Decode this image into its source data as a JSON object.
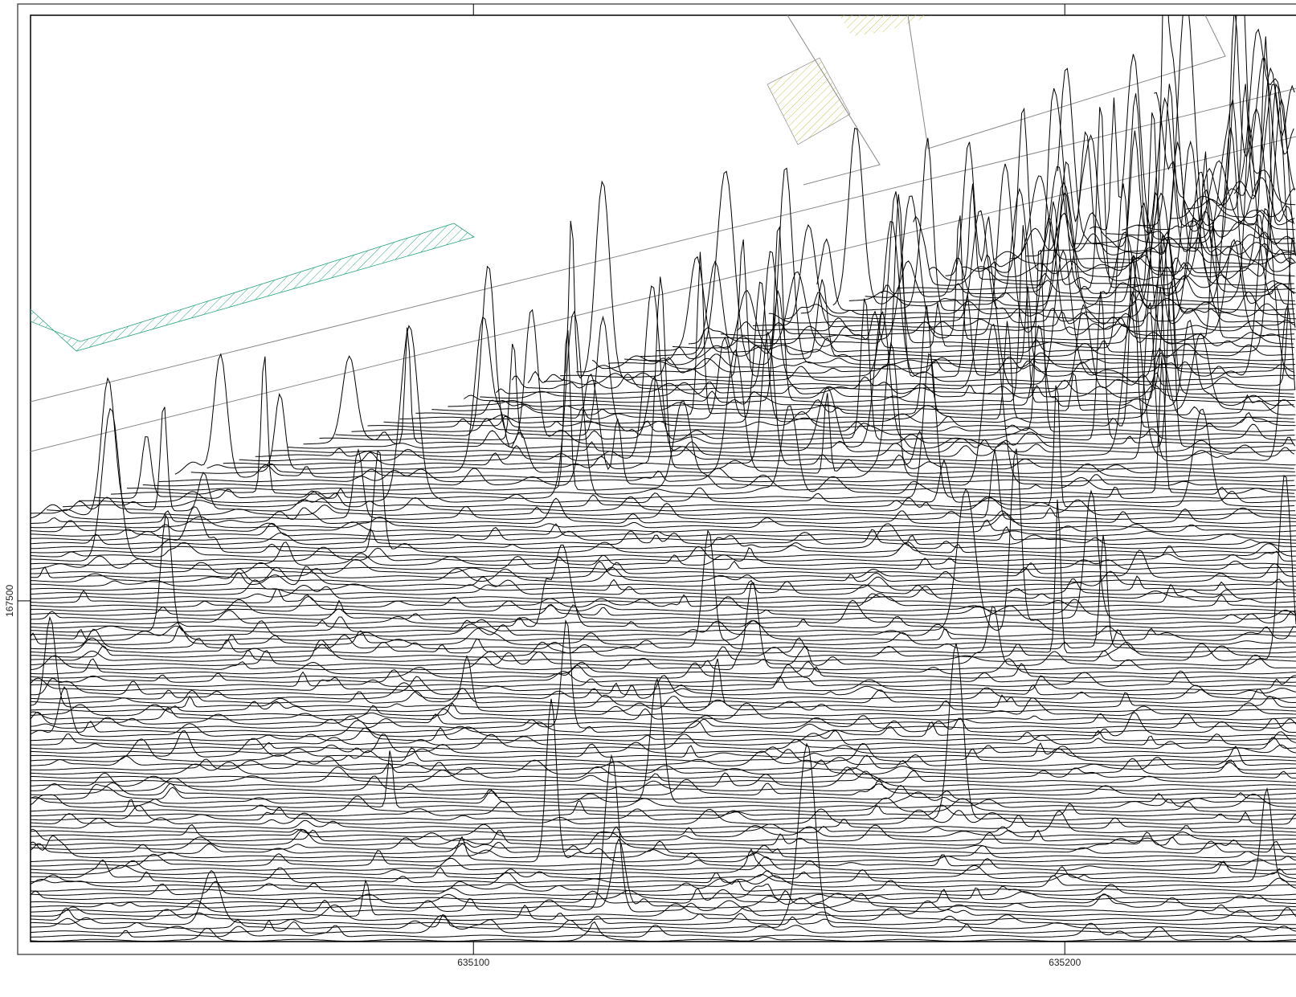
{
  "map": {
    "xlim": [
      635025.1,
      635239.1
    ],
    "ylim": [
      167442.4,
      167599.0
    ],
    "xticks": [
      635100,
      635200
    ],
    "yticks": [
      167500
    ]
  }
}
